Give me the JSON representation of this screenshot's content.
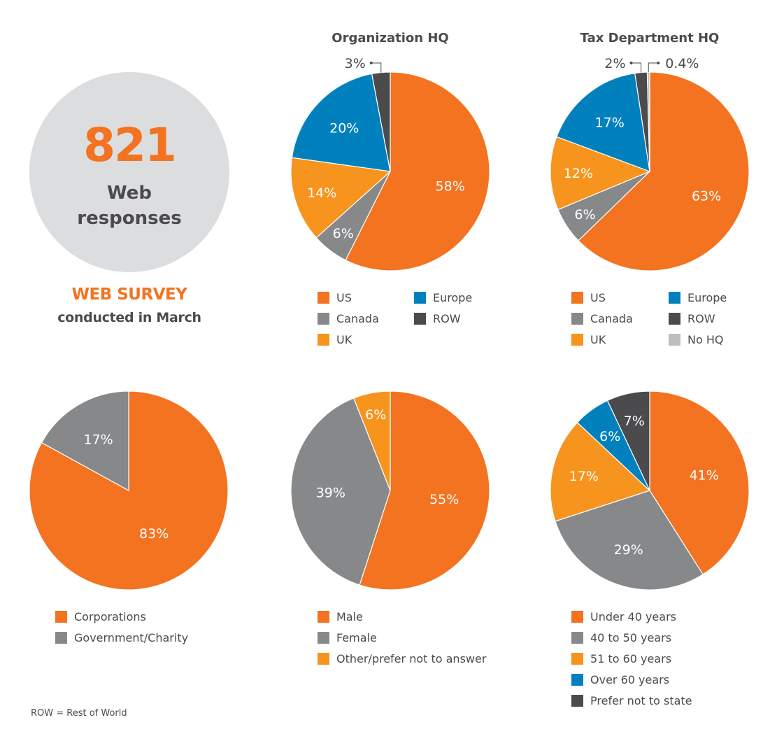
{
  "summary": {
    "count": "821",
    "label_line1": "Web",
    "label_line2": "responses",
    "survey_title": "WEB SURVEY",
    "survey_subtitle": "conducted in March"
  },
  "footnote": "ROW = Rest of World",
  "colors": {
    "orange": "#f37321",
    "gray": "#87888a",
    "light_orange": "#f7941d",
    "blue": "#0081be",
    "dark": "#4b4b4d",
    "light_gray": "#bcbec0",
    "circle_bg": "#dcddde"
  },
  "chart_data": [
    {
      "type": "pie",
      "title": "Organization HQ",
      "categories": [
        "US",
        "Canada",
        "UK",
        "Europe",
        "ROW"
      ],
      "values": [
        58,
        6,
        14,
        20,
        3
      ],
      "labels": [
        "58%",
        "6%",
        "14%",
        "20%",
        "3%"
      ],
      "colors": [
        "#f37321",
        "#87888a",
        "#f7941d",
        "#0081be",
        "#4b4b4d"
      ],
      "legend": [
        "US",
        "Canada",
        "UK",
        "Europe",
        "ROW"
      ],
      "legend_placement": "bottom"
    },
    {
      "type": "pie",
      "title": "Tax Department HQ",
      "categories": [
        "US",
        "Canada",
        "UK",
        "Europe",
        "ROW",
        "No HQ"
      ],
      "values": [
        63,
        6,
        12,
        17,
        2,
        0.4
      ],
      "labels": [
        "63%",
        "6%",
        "12%",
        "17%",
        "2%",
        "0.4%"
      ],
      "colors": [
        "#f37321",
        "#87888a",
        "#f7941d",
        "#0081be",
        "#4b4b4d",
        "#bcbec0"
      ],
      "legend": [
        "US",
        "Canada",
        "UK",
        "Europe",
        "ROW",
        "No HQ"
      ],
      "legend_placement": "bottom"
    },
    {
      "type": "pie",
      "title": "",
      "categories": [
        "Corporations",
        "Government/Charity"
      ],
      "values": [
        83,
        17
      ],
      "labels": [
        "83%",
        "17%"
      ],
      "colors": [
        "#f37321",
        "#87888a"
      ],
      "legend": [
        "Corporations",
        "Government/Charity"
      ],
      "legend_placement": "bottom"
    },
    {
      "type": "pie",
      "title": "",
      "categories": [
        "Male",
        "Female",
        "Other/prefer not to answer"
      ],
      "values": [
        55,
        39,
        6
      ],
      "labels": [
        "55%",
        "39%",
        "6%"
      ],
      "colors": [
        "#f37321",
        "#87888a",
        "#f7941d"
      ],
      "legend": [
        "Male",
        "Female",
        "Other/prefer not to answer"
      ],
      "legend_placement": "bottom"
    },
    {
      "type": "pie",
      "title": "",
      "categories": [
        "Under 40 years",
        "40 to 50 years",
        "51 to 60 years",
        "Over 60 years",
        "Prefer not to state"
      ],
      "values": [
        41,
        29,
        17,
        6,
        7
      ],
      "labels": [
        "41%",
        "29%",
        "17%",
        "6%",
        "7%"
      ],
      "colors": [
        "#f37321",
        "#87888a",
        "#f7941d",
        "#0081be",
        "#4b4b4d"
      ],
      "legend": [
        "Under 40 years",
        "40 to 50 years",
        "51 to 60 years",
        "Over 60 years",
        "Prefer not to state"
      ],
      "legend_placement": "bottom"
    }
  ]
}
